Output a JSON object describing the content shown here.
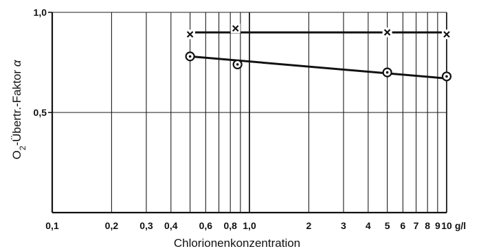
{
  "chart_data": {
    "type": "line",
    "title": "",
    "xlabel": "Chlorionenkonzentration",
    "x_unit": "g/l",
    "ylabel": {
      "main": "O",
      "subscript": "2",
      "rest": "-Übertr.-Faktor ",
      "symbol": "α"
    },
    "x_scale": "log",
    "xlim": [
      0.1,
      10
    ],
    "ylim": [
      0,
      1.0
    ],
    "grid": true,
    "x_gridlines": [
      0.2,
      0.3,
      0.4,
      0.5,
      0.6,
      0.7,
      0.8,
      0.9,
      1.0,
      2,
      3,
      4,
      5,
      6,
      7,
      8,
      9,
      10
    ],
    "y_gridlines": [
      0.5,
      1.0
    ],
    "x_ticks": [
      {
        "value": 0.1,
        "label": "0,1"
      },
      {
        "value": 0.2,
        "label": "0,2"
      },
      {
        "value": 0.3,
        "label": "0,3"
      },
      {
        "value": 0.4,
        "label": "0,4"
      },
      {
        "value": 0.6,
        "label": "0,6"
      },
      {
        "value": 0.8,
        "label": "0,8"
      },
      {
        "value": 1.0,
        "label": "1,0"
      },
      {
        "value": 2,
        "label": "2"
      },
      {
        "value": 3,
        "label": "3"
      },
      {
        "value": 4,
        "label": "4"
      },
      {
        "value": 5,
        "label": "5"
      },
      {
        "value": 6,
        "label": "6"
      },
      {
        "value": 7,
        "label": "7"
      },
      {
        "value": 8,
        "label": "8"
      },
      {
        "value": 9,
        "label": "9"
      },
      {
        "value": 10,
        "label": "10"
      }
    ],
    "y_ticks": [
      {
        "value": 0.5,
        "label": "0,5"
      },
      {
        "value": 1.0,
        "label": "1,0"
      }
    ],
    "series": [
      {
        "marker": "cross",
        "points": [
          {
            "x": 0.5,
            "y": 0.89
          },
          {
            "x": 0.85,
            "y": 0.92
          },
          {
            "x": 5,
            "y": 0.9
          },
          {
            "x": 10,
            "y": 0.89
          }
        ],
        "line": [
          [
            0.53,
            0.9
          ],
          [
            10,
            0.9
          ]
        ]
      },
      {
        "marker": "circle-dot",
        "points": [
          {
            "x": 0.5,
            "y": 0.78
          },
          {
            "x": 0.87,
            "y": 0.74
          },
          {
            "x": 5,
            "y": 0.7
          },
          {
            "x": 10,
            "y": 0.68
          }
        ],
        "line": [
          [
            0.5,
            0.78
          ],
          [
            10,
            0.67
          ]
        ]
      }
    ]
  }
}
